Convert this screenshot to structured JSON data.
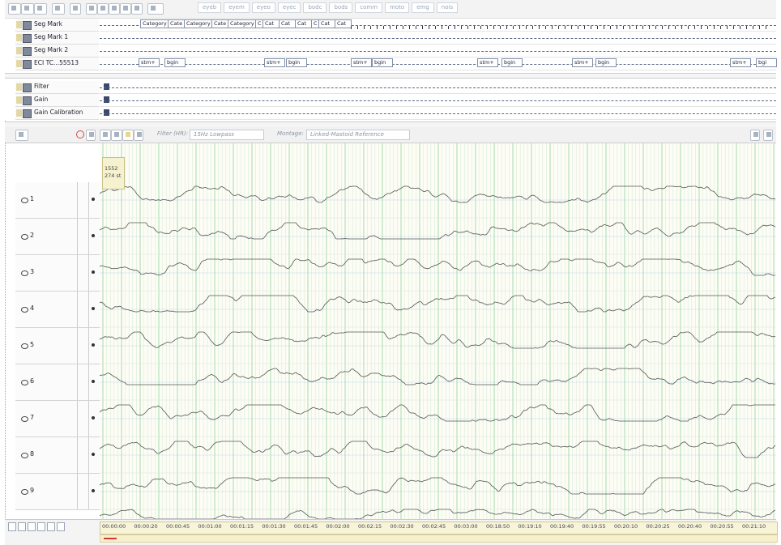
{
  "toolbar": {
    "tags": [
      "eyeb",
      "eyem",
      "eyeo",
      "eyec",
      "bodc",
      "bods",
      "comm",
      "moto",
      "emg",
      "nois"
    ]
  },
  "seg_panel": {
    "rows": [
      {
        "label": "Seg Mark"
      },
      {
        "label": "Seg Mark 1"
      },
      {
        "label": "Seg Mark 2"
      },
      {
        "label": "ECI TC...55513"
      }
    ],
    "category_chips": [
      "Category",
      "Cate",
      "Category",
      "Cate",
      "Category",
      "C",
      "Cat",
      "Cat",
      "Cat",
      "C",
      "Cat",
      "Cat"
    ],
    "eci_chips": [
      "stm+",
      "bgin",
      "stm+",
      "bgin",
      "stm+",
      "bgin",
      "stm+",
      "bgin",
      "stm+",
      "bgin",
      "stm+",
      "bgi"
    ]
  },
  "filter_panel": {
    "rows": [
      {
        "label": "Filter"
      },
      {
        "label": "Gain"
      },
      {
        "label": "Gain Calibration"
      }
    ]
  },
  "waveform_toolbar": {
    "filter_label": "Filter (HR):",
    "filter_value": "15Hz Lowpass",
    "montage_label": "Montage:",
    "montage_value": "Linked-Mastoid Reference"
  },
  "marker": {
    "line1": "1552",
    "line2": "274 st"
  },
  "channels": [
    {
      "label": "1"
    },
    {
      "label": "2"
    },
    {
      "label": "3"
    },
    {
      "label": "4"
    },
    {
      "label": "5"
    },
    {
      "label": "6"
    },
    {
      "label": "7"
    },
    {
      "label": "8"
    },
    {
      "label": "9"
    }
  ],
  "timeline": {
    "labels": [
      "00:00:00",
      "00:00:20",
      "00:00:45",
      "00:01:00",
      "00:01:15",
      "00:01:30",
      "00:01:45",
      "00:02:00",
      "00:02:15",
      "00:02:30",
      "00:02:45",
      "00:03:00",
      "00:18:50",
      "00:19:10",
      "00:19:40",
      "00:19:55",
      "00:20:10",
      "00:20:25",
      "00:20:40",
      "00:20:55",
      "00:21:10"
    ]
  },
  "colors": {
    "waveform": "#555555",
    "grid_green": "#9cd6a8",
    "grid_pale": "#d8ecd8",
    "baseline_blue": "#a9c6e6"
  }
}
